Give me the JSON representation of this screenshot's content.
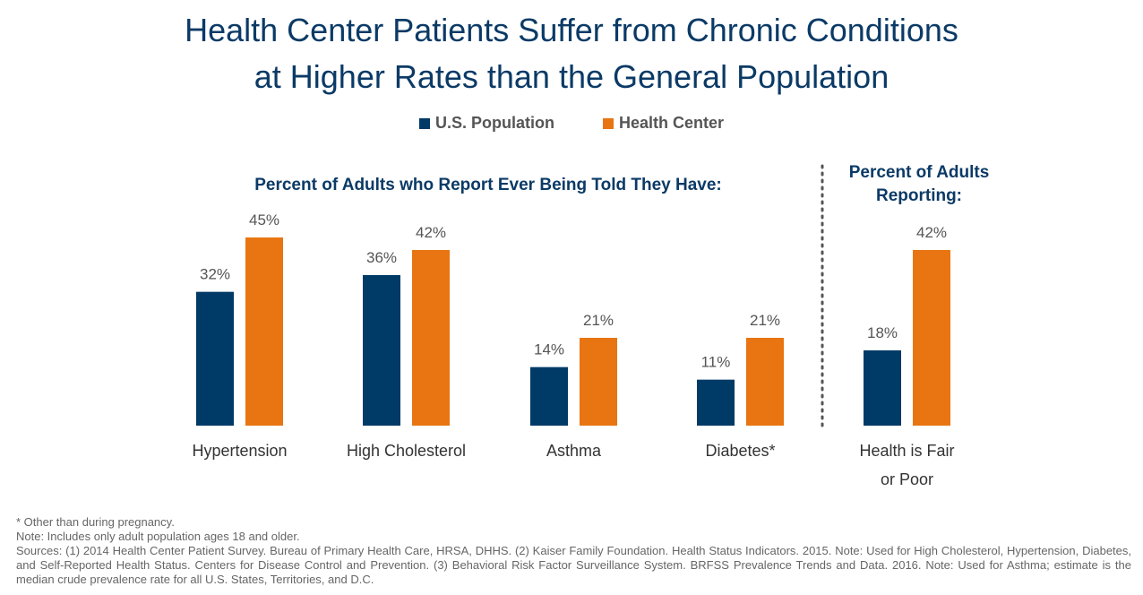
{
  "title_line1": "Health Center Patients Suffer from Chronic Conditions",
  "title_line2": "at Higher Rates than the General Population",
  "legend": [
    {
      "label": "U.S. Population",
      "color": "#003a66"
    },
    {
      "label": "Health Center",
      "color": "#e87511"
    }
  ],
  "subhead_left": "Percent of Adults who Report Ever Being Told They Have:",
  "subhead_right_line1": "Percent of Adults",
  "subhead_right_line2": "Reporting:",
  "chart_data": {
    "type": "bar",
    "categories": [
      "Hypertension",
      "High Cholesterol",
      "Asthma",
      "Diabetes*",
      "Health is Fair or Poor"
    ],
    "category_label_lines": [
      [
        "Hypertension"
      ],
      [
        "High Cholesterol"
      ],
      [
        "Asthma"
      ],
      [
        "Diabetes*"
      ],
      [
        "Health is Fair",
        "or Poor"
      ]
    ],
    "series": [
      {
        "name": "U.S. Population",
        "values": [
          32,
          36,
          14,
          11,
          18
        ],
        "labels": [
          "32%",
          "36%",
          "14%",
          "11%",
          "18%"
        ],
        "color": "#003a66"
      },
      {
        "name": "Health Center",
        "values": [
          45,
          42,
          21,
          21,
          42
        ],
        "labels": [
          "45%",
          "42%",
          "21%",
          "21%",
          "42%"
        ],
        "color": "#e87511"
      }
    ],
    "ylim": [
      0,
      50
    ],
    "grid": false,
    "legend_position": "top-center"
  },
  "footnotes": {
    "line1": "* Other than during pregnancy.",
    "line2": "Note: Includes only adult population ages 18 and older.",
    "sources": "Sources: (1) 2014 Health Center Patient Survey. Bureau of Primary Health Care, HRSA, DHHS. (2) Kaiser Family Foundation. Health Status Indicators. 2015. Note: Used for High Cholesterol, Hypertension, Diabetes, and Self-Reported Health Status. Centers for Disease Control and Prevention. (3) Behavioral Risk Factor Surveillance System. BRFSS Prevalence Trends and Data. 2016. Note: Used for Asthma; estimate is the median crude prevalence rate for all U.S. States, Territories, and D.C."
  }
}
